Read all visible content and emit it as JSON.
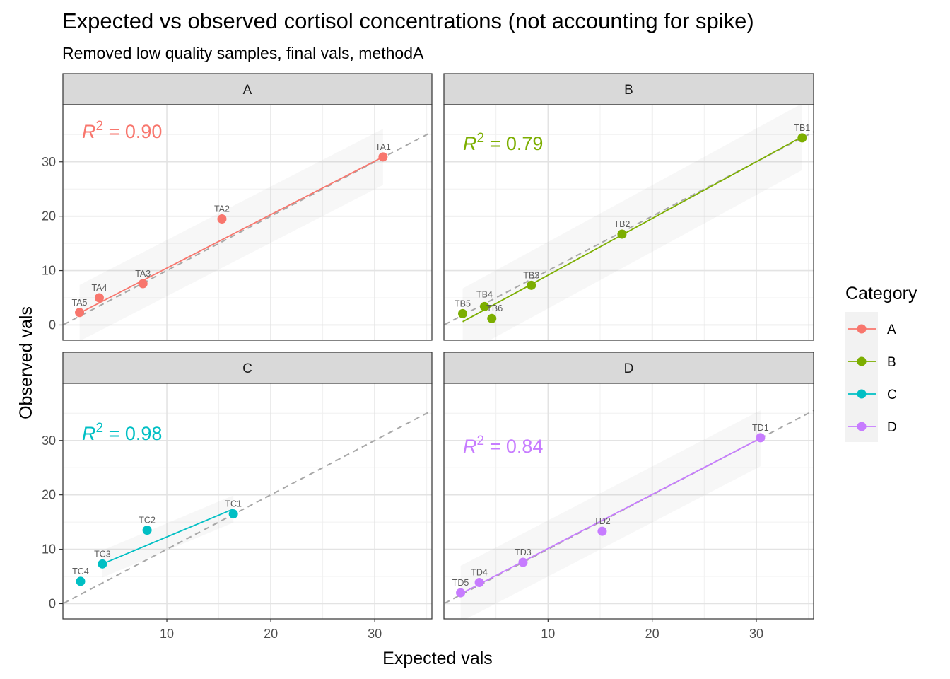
{
  "chart_data": {
    "type": "scatter",
    "title": "Expected vs observed cortisol concentrations (not accounting for spike)",
    "subtitle": "Removed low quality samples, final vals, methodA",
    "xlabel": "Expected vals",
    "ylabel": "Observed vals",
    "xlim": [
      0,
      35.5
    ],
    "ylim": [
      -2.8,
      40.5
    ],
    "x_ticks": [
      10,
      20,
      30
    ],
    "y_ticks": [
      0,
      10,
      20,
      30
    ],
    "grid": true,
    "identity_line": true,
    "legend": {
      "title": "Category",
      "position": "right",
      "items": [
        "A",
        "B",
        "C",
        "D"
      ]
    },
    "colors": {
      "A": "#F8766D",
      "B": "#7CAE00",
      "C": "#00BFC4",
      "D": "#C77CFF"
    },
    "facets": [
      {
        "name": "A",
        "r2_value": "0.90",
        "fit": {
          "x": [
            1.6,
            30.8
          ],
          "y": [
            2.2,
            30.9
          ]
        },
        "points": [
          {
            "label": "TA1",
            "x": 30.8,
            "y": 30.9
          },
          {
            "label": "TA2",
            "x": 15.3,
            "y": 19.5
          },
          {
            "label": "TA3",
            "x": 7.7,
            "y": 7.6
          },
          {
            "label": "TA4",
            "x": 3.5,
            "y": 5.0
          },
          {
            "label": "TA5",
            "x": 1.6,
            "y": 2.3
          }
        ]
      },
      {
        "name": "B",
        "r2_value": "0.79",
        "fit": {
          "x": [
            1.8,
            34.4
          ],
          "y": [
            0.6,
            34.6
          ]
        },
        "points": [
          {
            "label": "TB1",
            "x": 34.4,
            "y": 34.4
          },
          {
            "label": "TB2",
            "x": 17.1,
            "y": 16.7
          },
          {
            "label": "TB3",
            "x": 8.4,
            "y": 7.3
          },
          {
            "label": "TB4",
            "x": 3.9,
            "y": 3.4
          },
          {
            "label": "TB5",
            "x": 1.8,
            "y": 2.1
          },
          {
            "label": "TB6",
            "x": 4.6,
            "y": 1.2
          }
        ]
      },
      {
        "name": "C",
        "r2_value": "0.98",
        "fit": {
          "x": [
            3.8,
            16.4
          ],
          "y": [
            7.3,
            17.4
          ]
        },
        "points": [
          {
            "label": "TC1",
            "x": 16.4,
            "y": 16.5
          },
          {
            "label": "TC2",
            "x": 8.1,
            "y": 13.5
          },
          {
            "label": "TC3",
            "x": 3.8,
            "y": 7.3
          },
          {
            "label": "TC4",
            "x": 1.7,
            "y": 4.1
          }
        ]
      },
      {
        "name": "D",
        "r2_value": "0.84",
        "fit": {
          "x": [
            1.6,
            30.4
          ],
          "y": [
            1.8,
            30.4
          ]
        },
        "points": [
          {
            "label": "TD1",
            "x": 30.4,
            "y": 30.5
          },
          {
            "label": "TD2",
            "x": 15.2,
            "y": 13.3
          },
          {
            "label": "TD3",
            "x": 7.6,
            "y": 7.6
          },
          {
            "label": "TD4",
            "x": 3.4,
            "y": 3.9
          },
          {
            "label": "TD5",
            "x": 1.6,
            "y": 2.0
          }
        ]
      }
    ]
  }
}
